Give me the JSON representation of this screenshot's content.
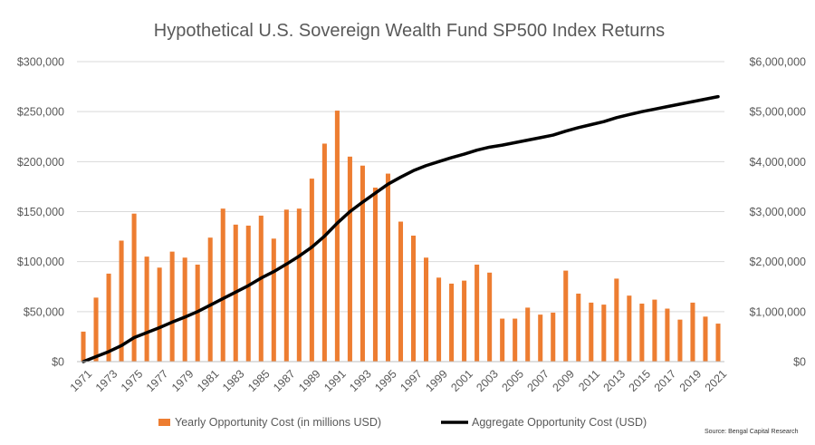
{
  "chart_data": {
    "type": "bar",
    "title": "Hypothetical U.S. Sovereign Wealth Fund SP500 Index Returns",
    "source": "Source: Bengal Capital Research",
    "x": [
      1971,
      1972,
      1973,
      1974,
      1975,
      1976,
      1977,
      1978,
      1979,
      1980,
      1981,
      1982,
      1983,
      1984,
      1985,
      1986,
      1987,
      1988,
      1989,
      1990,
      1991,
      1992,
      1993,
      1994,
      1995,
      1996,
      1997,
      1998,
      1999,
      2000,
      2001,
      2002,
      2003,
      2004,
      2005,
      2006,
      2007,
      2008,
      2009,
      2010,
      2011,
      2012,
      2013,
      2014,
      2015,
      2016,
      2017,
      2018,
      2019,
      2020,
      2021
    ],
    "x_tick_labels": [
      "1971",
      "1973",
      "1975",
      "1977",
      "1979",
      "1981",
      "1983",
      "1985",
      "1987",
      "1989",
      "1991",
      "1993",
      "1995",
      "1997",
      "1999",
      "2001",
      "2003",
      "2005",
      "2007",
      "2009",
      "2011",
      "2013",
      "2015",
      "2017",
      "2019",
      "2021"
    ],
    "y_left": {
      "ylim": [
        0,
        300000
      ],
      "tick_labels": [
        "$0",
        "$50,000",
        "$100,000",
        "$150,000",
        "$200,000",
        "$250,000",
        "$300,000"
      ]
    },
    "y_right": {
      "ylim": [
        0,
        6000000
      ],
      "tick_labels": [
        "$0",
        "$1,000,000",
        "$2,000,000",
        "$3,000,000",
        "$4,000,000",
        "$5,000,000",
        "$6,000,000"
      ]
    },
    "grid": true,
    "legend_position": "bottom",
    "series": [
      {
        "name": "Yearly Opportunity Cost (in millions USD)",
        "type": "bar",
        "axis": "left",
        "color": "#ed7d31",
        "values": [
          30000,
          64000,
          88000,
          121000,
          148000,
          105000,
          94000,
          110000,
          104000,
          97000,
          124000,
          153000,
          137000,
          136000,
          146000,
          123000,
          152000,
          153000,
          183000,
          218000,
          251000,
          205000,
          196000,
          174000,
          188000,
          140000,
          126000,
          104000,
          84000,
          78000,
          81000,
          97000,
          89000,
          43000,
          43000,
          54000,
          47000,
          49000,
          91000,
          68000,
          59000,
          57000,
          83000,
          66000,
          58000,
          62000,
          53000,
          42000,
          59000,
          45000,
          38000
        ]
      },
      {
        "name": "Aggregate Opportunity Cost (USD)",
        "type": "line",
        "axis": "right",
        "color": "#000000",
        "values": [
          0,
          100000,
          200000,
          320000,
          480000,
          580000,
          680000,
          790000,
          890000,
          1000000,
          1130000,
          1260000,
          1390000,
          1520000,
          1670000,
          1800000,
          1950000,
          2110000,
          2290000,
          2510000,
          2770000,
          3000000,
          3190000,
          3370000,
          3550000,
          3690000,
          3820000,
          3920000,
          4000000,
          4080000,
          4150000,
          4230000,
          4290000,
          4330000,
          4380000,
          4430000,
          4480000,
          4530000,
          4610000,
          4680000,
          4740000,
          4800000,
          4880000,
          4940000,
          5000000,
          5050000,
          5100000,
          5150000,
          5200000,
          5250000,
          5300000
        ]
      }
    ]
  }
}
